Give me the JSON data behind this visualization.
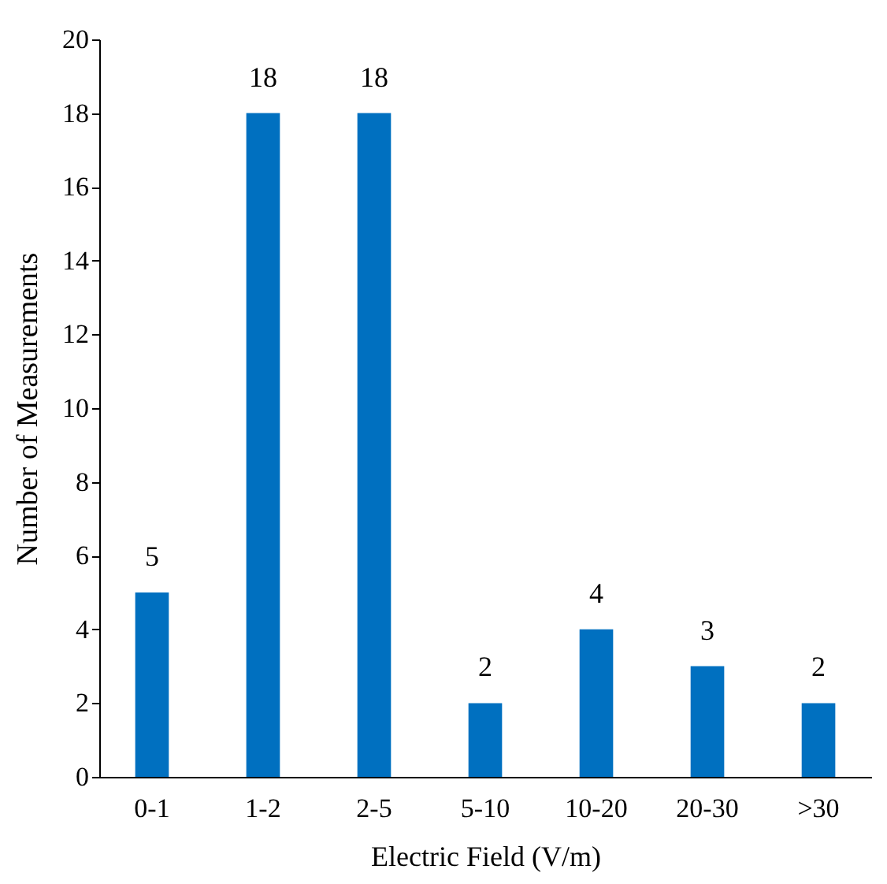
{
  "chart_data": {
    "type": "bar",
    "xlabel": "Electric Field (V/m)",
    "ylabel": "Number of Measurements",
    "categories": [
      "0-1",
      "1-2",
      "2-5",
      "5-10",
      "10-20",
      "20-30",
      ">30"
    ],
    "values": [
      5,
      18,
      18,
      2,
      4,
      3,
      2
    ],
    "color": "#0070c0",
    "ylim": [
      0,
      20
    ],
    "yticks": [
      0,
      2,
      4,
      6,
      8,
      10,
      12,
      14,
      16,
      18,
      20
    ],
    "grid": false,
    "data_labels": true
  }
}
